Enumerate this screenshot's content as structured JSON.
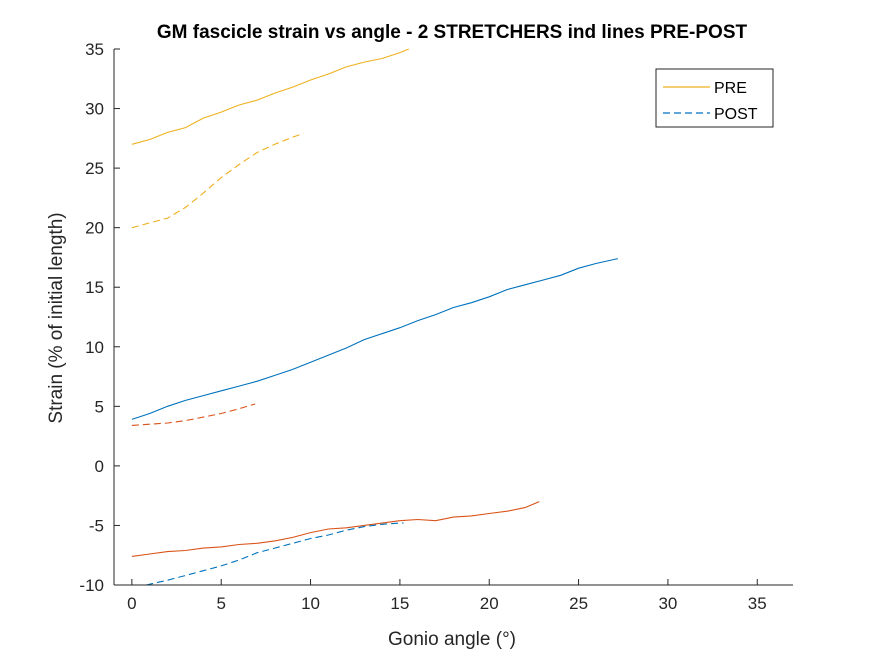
{
  "chart_data": {
    "type": "line",
    "title": "GM fascicle strain vs angle - 2 STRETCHERS ind lines PRE-POST",
    "xlabel": "Gonio angle (°)",
    "ylabel": "Strain (% of initial length)",
    "xlim": [
      -1,
      37
    ],
    "ylim": [
      -10,
      35
    ],
    "xticks": [
      0,
      5,
      10,
      15,
      20,
      25,
      30,
      35
    ],
    "yticks": [
      -10,
      -5,
      0,
      5,
      10,
      15,
      20,
      25,
      30,
      35
    ],
    "grid": false,
    "legend": {
      "position": "top-right",
      "entries": [
        {
          "label": "PRE",
          "style": "solid",
          "color": "#EDB120"
        },
        {
          "label": "POST",
          "style": "dashed",
          "color": "#0072BD"
        }
      ]
    },
    "series": [
      {
        "color": "#EDB120",
        "style": "solid",
        "x": [
          0,
          1,
          2,
          3,
          4,
          5,
          6,
          7,
          8,
          9,
          10,
          11,
          12,
          13,
          14,
          15,
          15.5
        ],
        "y": [
          27.0,
          27.4,
          28.0,
          28.4,
          29.2,
          29.7,
          30.3,
          30.7,
          31.3,
          31.8,
          32.4,
          32.9,
          33.5,
          33.9,
          34.2,
          34.7,
          35.0
        ]
      },
      {
        "color": "#EDB120",
        "style": "dashed",
        "x": [
          0,
          1,
          2,
          3,
          4,
          5,
          6,
          7,
          8,
          9,
          9.6
        ],
        "y": [
          20.0,
          20.4,
          20.8,
          21.7,
          22.9,
          24.2,
          25.3,
          26.3,
          27.0,
          27.6,
          27.9
        ]
      },
      {
        "color": "#0072BD",
        "style": "solid",
        "x": [
          0,
          1,
          2,
          3,
          4,
          5,
          6,
          7,
          8,
          9,
          10,
          11,
          12,
          13,
          14,
          15,
          16,
          17,
          18,
          19,
          20,
          21,
          22,
          23,
          24,
          25,
          26,
          27.2
        ],
        "y": [
          3.9,
          4.4,
          5.0,
          5.5,
          5.9,
          6.3,
          6.7,
          7.1,
          7.6,
          8.1,
          8.7,
          9.3,
          9.9,
          10.6,
          11.1,
          11.6,
          12.2,
          12.7,
          13.3,
          13.7,
          14.2,
          14.8,
          15.2,
          15.6,
          16.0,
          16.6,
          17.0,
          17.4
        ]
      },
      {
        "color": "#D95319",
        "style": "dashed",
        "x": [
          0,
          1,
          2,
          3,
          4,
          5,
          6,
          6.9
        ],
        "y": [
          3.4,
          3.5,
          3.6,
          3.8,
          4.1,
          4.4,
          4.8,
          5.2
        ]
      },
      {
        "color": "#D95319",
        "style": "solid",
        "x": [
          0,
          1,
          2,
          3,
          4,
          5,
          6,
          7,
          8,
          9,
          10,
          11,
          12,
          13,
          14,
          15,
          16,
          17,
          18,
          19,
          20,
          21,
          22,
          22.8
        ],
        "y": [
          -7.6,
          -7.4,
          -7.2,
          -7.1,
          -6.9,
          -6.8,
          -6.6,
          -6.5,
          -6.3,
          -6.0,
          -5.6,
          -5.3,
          -5.2,
          -5.0,
          -4.8,
          -4.6,
          -4.5,
          -4.6,
          -4.3,
          -4.2,
          -4.0,
          -3.8,
          -3.5,
          -3.0
        ]
      },
      {
        "color": "#0072BD",
        "style": "dashed",
        "x": [
          0.8,
          2,
          3,
          4,
          5,
          6,
          7,
          8,
          9,
          10,
          11,
          12,
          13,
          14,
          15,
          15.2
        ],
        "y": [
          -10.0,
          -9.6,
          -9.2,
          -8.8,
          -8.4,
          -7.9,
          -7.3,
          -6.9,
          -6.5,
          -6.1,
          -5.8,
          -5.4,
          -5.1,
          -4.9,
          -4.8,
          -4.8
        ]
      }
    ]
  }
}
